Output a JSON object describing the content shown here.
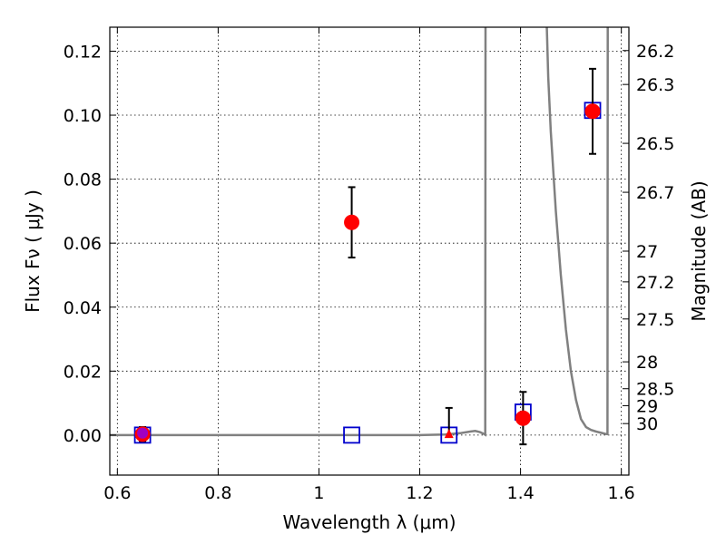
{
  "chart_data": {
    "type": "scatter",
    "title": "",
    "xlabel": "Wavelength  λ (μm)",
    "ylabel": "Flux  Fν  ( μJy )",
    "y2label": "Magnitude (AB)",
    "xlim": [
      0.585,
      1.615
    ],
    "ylim": [
      -0.0125,
      0.1275
    ],
    "grid": true,
    "x_ticks": [
      {
        "value": 0.6,
        "label": "0.6"
      },
      {
        "value": 0.8,
        "label": "0.8"
      },
      {
        "value": 1.0,
        "label": "1"
      },
      {
        "value": 1.2,
        "label": "1.2"
      },
      {
        "value": 1.4,
        "label": "1.4"
      },
      {
        "value": 1.6,
        "label": "1.6"
      }
    ],
    "y_ticks": [
      {
        "value": 0.0,
        "label": "0.00"
      },
      {
        "value": 0.02,
        "label": "0.02"
      },
      {
        "value": 0.04,
        "label": "0.04"
      },
      {
        "value": 0.06,
        "label": "0.06"
      },
      {
        "value": 0.08,
        "label": "0.08"
      },
      {
        "value": 0.1,
        "label": "0.10"
      },
      {
        "value": 0.12,
        "label": "0.12"
      }
    ],
    "mag_ticks": [
      {
        "value": 0.1202,
        "label": "26.2"
      },
      {
        "value": 0.1096,
        "label": "26.3"
      },
      {
        "value": 0.0912,
        "label": "26.5"
      },
      {
        "value": 0.0759,
        "label": "26.7"
      },
      {
        "value": 0.0575,
        "label": "27"
      },
      {
        "value": 0.0479,
        "label": "27.2"
      },
      {
        "value": 0.0363,
        "label": "27.5"
      },
      {
        "value": 0.0229,
        "label": "28"
      },
      {
        "value": 0.0145,
        "label": "28.5"
      },
      {
        "value": 0.0092,
        "label": "29"
      },
      {
        "value": 0.0036,
        "label": "30"
      }
    ],
    "measured": {
      "color": "#ff0000",
      "points": [
        {
          "x": 0.65,
          "y": 0.0003,
          "err": 0.0022
        },
        {
          "x": 1.065,
          "y": 0.0665,
          "err": 0.011
        },
        {
          "x": 1.405,
          "y": 0.0053,
          "err": 0.0082
        },
        {
          "x": 1.543,
          "y": 0.1012,
          "err": 0.0133
        }
      ]
    },
    "upper_limit": {
      "color": "#ff0000",
      "points": [
        {
          "x": 1.258,
          "y": 0.0002,
          "err_up": 0.0083
        }
      ]
    },
    "model_points": {
      "color": "#0000cc",
      "points": [
        {
          "x": 0.65,
          "y": 0.0
        },
        {
          "x": 1.065,
          "y": 0.0
        },
        {
          "x": 1.258,
          "y": 0.0
        },
        {
          "x": 1.405,
          "y": 0.0072
        },
        {
          "x": 1.543,
          "y": 0.1015
        }
      ]
    },
    "filter_point": {
      "x": 0.65,
      "y": 0.0006,
      "color": "#a000c0"
    },
    "model_curve": {
      "color": "#808080",
      "x": [
        0.585,
        0.6,
        0.8,
        1.0,
        1.2,
        1.25,
        1.28,
        1.3,
        1.31,
        1.32,
        1.328,
        1.33,
        1.3305,
        1.331,
        1.451,
        1.452,
        1.455,
        1.46,
        1.47,
        1.48,
        1.49,
        1.5,
        1.51,
        1.52,
        1.53,
        1.54,
        1.55,
        1.56,
        1.568,
        1.5725,
        1.573
      ],
      "y": [
        0.0,
        0.0,
        0.0,
        0.0,
        0.0,
        0.0002,
        0.0006,
        0.0011,
        0.0013,
        0.0009,
        0.0003,
        0.0001,
        0.13,
        0.13,
        0.13,
        0.128,
        0.112,
        0.095,
        0.07,
        0.05,
        0.033,
        0.02,
        0.011,
        0.005,
        0.0025,
        0.0016,
        0.0011,
        0.0007,
        0.0004,
        0.0003,
        0.13
      ]
    }
  }
}
